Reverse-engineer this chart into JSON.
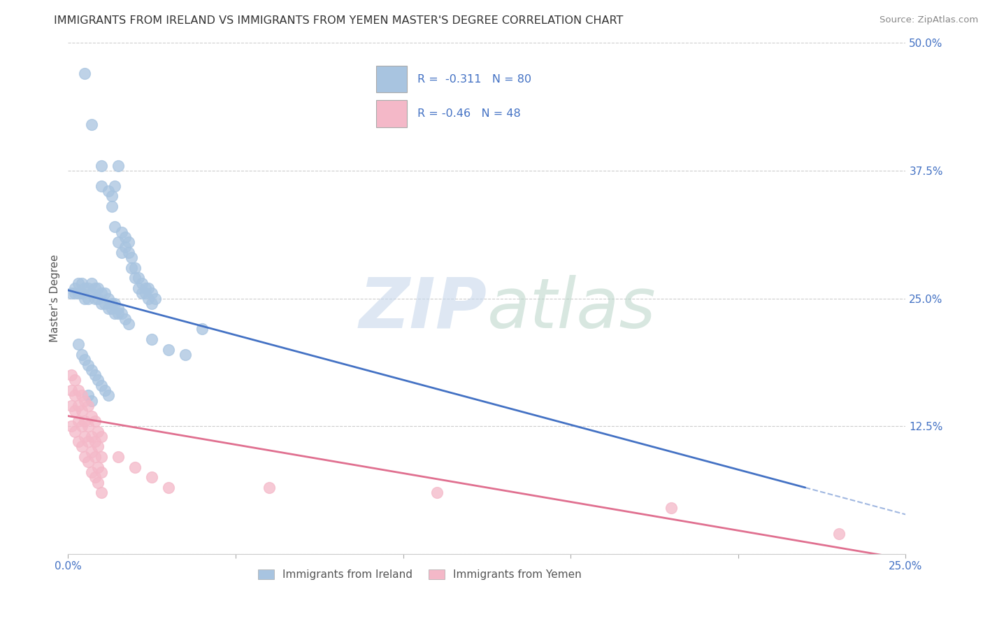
{
  "title": "IMMIGRANTS FROM IRELAND VS IMMIGRANTS FROM YEMEN MASTER'S DEGREE CORRELATION CHART",
  "source": "Source: ZipAtlas.com",
  "ylabel": "Master's Degree",
  "x_min": 0.0,
  "x_max": 0.25,
  "y_min": 0.0,
  "y_max": 0.5,
  "x_ticks": [
    0.0,
    0.05,
    0.1,
    0.15,
    0.2,
    0.25
  ],
  "y_ticks": [
    0.0,
    0.125,
    0.25,
    0.375,
    0.5
  ],
  "ireland_color": "#a8c4e0",
  "yemen_color": "#f4b8c8",
  "ireland_line_color": "#4472c4",
  "yemen_line_color": "#e07090",
  "ireland_R": -0.311,
  "ireland_N": 80,
  "yemen_R": -0.46,
  "yemen_N": 48,
  "legend_label_ireland": "Immigrants from Ireland",
  "legend_label_yemen": "Immigrants from Yemen",
  "ireland_line_x0": 0.0,
  "ireland_line_y0": 0.258,
  "ireland_line_x1": 0.22,
  "ireland_line_y1": 0.065,
  "yemen_line_x0": 0.0,
  "yemen_line_y0": 0.135,
  "yemen_line_x1": 0.25,
  "yemen_line_y1": -0.005,
  "ireland_scatter": [
    [
      0.005,
      0.47
    ],
    [
      0.007,
      0.42
    ],
    [
      0.01,
      0.38
    ],
    [
      0.01,
      0.36
    ],
    [
      0.012,
      0.355
    ],
    [
      0.013,
      0.35
    ],
    [
      0.013,
      0.34
    ],
    [
      0.014,
      0.36
    ],
    [
      0.014,
      0.32
    ],
    [
      0.015,
      0.38
    ],
    [
      0.015,
      0.305
    ],
    [
      0.016,
      0.315
    ],
    [
      0.016,
      0.295
    ],
    [
      0.017,
      0.31
    ],
    [
      0.017,
      0.3
    ],
    [
      0.018,
      0.305
    ],
    [
      0.018,
      0.295
    ],
    [
      0.019,
      0.29
    ],
    [
      0.019,
      0.28
    ],
    [
      0.02,
      0.28
    ],
    [
      0.02,
      0.27
    ],
    [
      0.021,
      0.27
    ],
    [
      0.021,
      0.26
    ],
    [
      0.022,
      0.265
    ],
    [
      0.022,
      0.255
    ],
    [
      0.023,
      0.26
    ],
    [
      0.023,
      0.255
    ],
    [
      0.024,
      0.26
    ],
    [
      0.024,
      0.25
    ],
    [
      0.025,
      0.255
    ],
    [
      0.025,
      0.245
    ],
    [
      0.026,
      0.25
    ],
    [
      0.001,
      0.255
    ],
    [
      0.002,
      0.26
    ],
    [
      0.002,
      0.255
    ],
    [
      0.003,
      0.265
    ],
    [
      0.003,
      0.255
    ],
    [
      0.004,
      0.265
    ],
    [
      0.004,
      0.255
    ],
    [
      0.005,
      0.26
    ],
    [
      0.005,
      0.25
    ],
    [
      0.006,
      0.26
    ],
    [
      0.006,
      0.25
    ],
    [
      0.007,
      0.265
    ],
    [
      0.007,
      0.255
    ],
    [
      0.008,
      0.26
    ],
    [
      0.008,
      0.25
    ],
    [
      0.009,
      0.26
    ],
    [
      0.009,
      0.25
    ],
    [
      0.01,
      0.255
    ],
    [
      0.01,
      0.245
    ],
    [
      0.011,
      0.255
    ],
    [
      0.011,
      0.245
    ],
    [
      0.012,
      0.25
    ],
    [
      0.012,
      0.24
    ],
    [
      0.013,
      0.245
    ],
    [
      0.013,
      0.24
    ],
    [
      0.014,
      0.245
    ],
    [
      0.014,
      0.235
    ],
    [
      0.015,
      0.24
    ],
    [
      0.015,
      0.235
    ],
    [
      0.016,
      0.235
    ],
    [
      0.017,
      0.23
    ],
    [
      0.018,
      0.225
    ],
    [
      0.04,
      0.22
    ],
    [
      0.025,
      0.21
    ],
    [
      0.03,
      0.2
    ],
    [
      0.035,
      0.195
    ],
    [
      0.003,
      0.205
    ],
    [
      0.004,
      0.195
    ],
    [
      0.005,
      0.19
    ],
    [
      0.006,
      0.185
    ],
    [
      0.007,
      0.18
    ],
    [
      0.008,
      0.175
    ],
    [
      0.009,
      0.17
    ],
    [
      0.01,
      0.165
    ],
    [
      0.011,
      0.16
    ],
    [
      0.012,
      0.155
    ],
    [
      0.006,
      0.155
    ],
    [
      0.007,
      0.15
    ]
  ],
  "yemen_scatter": [
    [
      0.001,
      0.175
    ],
    [
      0.001,
      0.16
    ],
    [
      0.001,
      0.145
    ],
    [
      0.001,
      0.125
    ],
    [
      0.002,
      0.17
    ],
    [
      0.002,
      0.155
    ],
    [
      0.002,
      0.14
    ],
    [
      0.002,
      0.12
    ],
    [
      0.003,
      0.16
    ],
    [
      0.003,
      0.145
    ],
    [
      0.003,
      0.13
    ],
    [
      0.003,
      0.11
    ],
    [
      0.004,
      0.155
    ],
    [
      0.004,
      0.14
    ],
    [
      0.004,
      0.125
    ],
    [
      0.004,
      0.105
    ],
    [
      0.005,
      0.15
    ],
    [
      0.005,
      0.13
    ],
    [
      0.005,
      0.115
    ],
    [
      0.005,
      0.095
    ],
    [
      0.006,
      0.145
    ],
    [
      0.006,
      0.125
    ],
    [
      0.006,
      0.11
    ],
    [
      0.006,
      0.09
    ],
    [
      0.007,
      0.135
    ],
    [
      0.007,
      0.115
    ],
    [
      0.007,
      0.1
    ],
    [
      0.007,
      0.08
    ],
    [
      0.008,
      0.13
    ],
    [
      0.008,
      0.11
    ],
    [
      0.008,
      0.095
    ],
    [
      0.008,
      0.075
    ],
    [
      0.009,
      0.12
    ],
    [
      0.009,
      0.105
    ],
    [
      0.009,
      0.085
    ],
    [
      0.009,
      0.07
    ],
    [
      0.01,
      0.115
    ],
    [
      0.01,
      0.095
    ],
    [
      0.01,
      0.08
    ],
    [
      0.01,
      0.06
    ],
    [
      0.015,
      0.095
    ],
    [
      0.02,
      0.085
    ],
    [
      0.025,
      0.075
    ],
    [
      0.03,
      0.065
    ],
    [
      0.06,
      0.065
    ],
    [
      0.11,
      0.06
    ],
    [
      0.18,
      0.045
    ],
    [
      0.23,
      0.02
    ]
  ]
}
